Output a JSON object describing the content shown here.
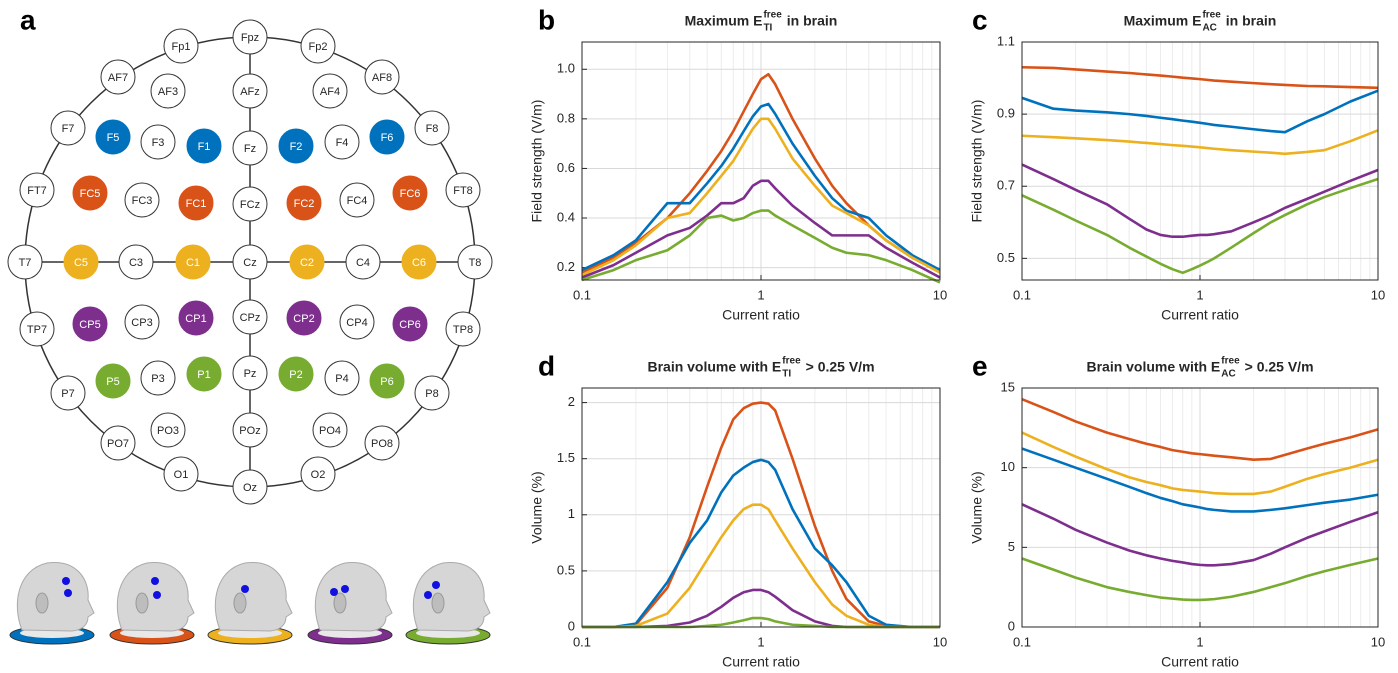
{
  "diagram": {
    "label": "a",
    "electrodes": [
      {
        "label": "Fp1",
        "color": "#ffffff"
      },
      {
        "label": "Fpz",
        "color": "#ffffff"
      },
      {
        "label": "Fp2",
        "color": "#ffffff"
      },
      {
        "label": "AF7",
        "color": "#ffffff"
      },
      {
        "label": "AF3",
        "color": "#ffffff"
      },
      {
        "label": "AFz",
        "color": "#ffffff"
      },
      {
        "label": "AF4",
        "color": "#ffffff"
      },
      {
        "label": "AF8",
        "color": "#ffffff"
      },
      {
        "label": "F7",
        "color": "#ffffff"
      },
      {
        "label": "F5",
        "color": "#0072bd"
      },
      {
        "label": "F3",
        "color": "#ffffff"
      },
      {
        "label": "F1",
        "color": "#0072bd"
      },
      {
        "label": "Fz",
        "color": "#ffffff"
      },
      {
        "label": "F2",
        "color": "#0072bd"
      },
      {
        "label": "F4",
        "color": "#ffffff"
      },
      {
        "label": "F6",
        "color": "#0072bd"
      },
      {
        "label": "F8",
        "color": "#ffffff"
      },
      {
        "label": "FT7",
        "color": "#ffffff"
      },
      {
        "label": "FC5",
        "color": "#d95319"
      },
      {
        "label": "FC3",
        "color": "#ffffff"
      },
      {
        "label": "FC1",
        "color": "#d95319"
      },
      {
        "label": "FCz",
        "color": "#ffffff"
      },
      {
        "label": "FC2",
        "color": "#d95319"
      },
      {
        "label": "FC4",
        "color": "#ffffff"
      },
      {
        "label": "FC6",
        "color": "#d95319"
      },
      {
        "label": "FT8",
        "color": "#ffffff"
      },
      {
        "label": "T7",
        "color": "#ffffff"
      },
      {
        "label": "C5",
        "color": "#edb120"
      },
      {
        "label": "C3",
        "color": "#ffffff"
      },
      {
        "label": "C1",
        "color": "#edb120"
      },
      {
        "label": "Cz",
        "color": "#ffffff"
      },
      {
        "label": "C2",
        "color": "#edb120"
      },
      {
        "label": "C4",
        "color": "#ffffff"
      },
      {
        "label": "C6",
        "color": "#edb120"
      },
      {
        "label": "T8",
        "color": "#ffffff"
      },
      {
        "label": "TP7",
        "color": "#ffffff"
      },
      {
        "label": "CP5",
        "color": "#7e2f8e"
      },
      {
        "label": "CP3",
        "color": "#ffffff"
      },
      {
        "label": "CP1",
        "color": "#7e2f8e"
      },
      {
        "label": "CPz",
        "color": "#ffffff"
      },
      {
        "label": "CP2",
        "color": "#7e2f8e"
      },
      {
        "label": "CP4",
        "color": "#ffffff"
      },
      {
        "label": "CP6",
        "color": "#7e2f8e"
      },
      {
        "label": "TP8",
        "color": "#ffffff"
      },
      {
        "label": "P7",
        "color": "#ffffff"
      },
      {
        "label": "P5",
        "color": "#77ac30"
      },
      {
        "label": "P3",
        "color": "#ffffff"
      },
      {
        "label": "P1",
        "color": "#77ac30"
      },
      {
        "label": "Pz",
        "color": "#ffffff"
      },
      {
        "label": "P2",
        "color": "#77ac30"
      },
      {
        "label": "P4",
        "color": "#ffffff"
      },
      {
        "label": "P6",
        "color": "#77ac30"
      },
      {
        "label": "P8",
        "color": "#ffffff"
      },
      {
        "label": "PO7",
        "color": "#ffffff"
      },
      {
        "label": "PO3",
        "color": "#ffffff"
      },
      {
        "label": "POz",
        "color": "#ffffff"
      },
      {
        "label": "PO4",
        "color": "#ffffff"
      },
      {
        "label": "PO8",
        "color": "#ffffff"
      },
      {
        "label": "O1",
        "color": "#ffffff"
      },
      {
        "label": "Oz",
        "color": "#ffffff"
      },
      {
        "label": "O2",
        "color": "#ffffff"
      }
    ]
  },
  "chart_data": [
    {
      "type": "line",
      "label": "b",
      "title": {
        "text": "Maximum E",
        "sup": "free",
        "sub": "TI",
        "rest": "in brain"
      },
      "x_label": "Current ratio",
      "y_label": "Field strength (V/m)",
      "xscale": "log",
      "grid": true,
      "xlim": [
        0.1,
        10
      ],
      "xticks": [
        0.1,
        1,
        10
      ],
      "xminor": [
        0.2,
        0.3,
        0.4,
        0.5,
        0.6,
        0.7,
        0.8,
        0.9,
        2,
        3,
        4,
        5,
        6,
        7,
        8,
        9
      ],
      "ylim": [
        0.15,
        1.11
      ],
      "yticks": [
        0.2,
        0.4,
        0.6,
        0.8,
        {
          "value": 1,
          "label": "1.0"
        }
      ],
      "x": [
        0.1,
        0.15,
        0.2,
        0.3,
        0.4,
        0.5,
        0.6,
        0.7,
        0.8,
        0.9,
        1,
        1.1,
        1.2,
        1.5,
        2,
        2.5,
        3,
        4,
        5,
        7,
        10
      ],
      "series": [
        {
          "color": "#d95319",
          "values": [
            0.18,
            0.24,
            0.3,
            0.4,
            0.5,
            0.59,
            0.67,
            0.75,
            0.83,
            0.9,
            0.96,
            0.98,
            0.94,
            0.8,
            0.64,
            0.53,
            0.46,
            0.37,
            0.31,
            0.24,
            0.19
          ]
        },
        {
          "color": "#0072bd",
          "values": [
            0.19,
            0.25,
            0.31,
            0.46,
            0.46,
            0.54,
            0.61,
            0.68,
            0.75,
            0.81,
            0.85,
            0.86,
            0.82,
            0.7,
            0.57,
            0.48,
            0.43,
            0.4,
            0.33,
            0.25,
            0.19
          ]
        },
        {
          "color": "#edb120",
          "values": [
            0.17,
            0.23,
            0.29,
            0.4,
            0.42,
            0.5,
            0.57,
            0.63,
            0.7,
            0.76,
            0.8,
            0.8,
            0.76,
            0.64,
            0.53,
            0.45,
            0.42,
            0.37,
            0.31,
            0.24,
            0.18
          ]
        },
        {
          "color": "#7e2f8e",
          "values": [
            0.16,
            0.21,
            0.26,
            0.33,
            0.36,
            0.41,
            0.46,
            0.46,
            0.48,
            0.53,
            0.55,
            0.55,
            0.52,
            0.45,
            0.38,
            0.33,
            0.33,
            0.33,
            0.28,
            0.22,
            0.16
          ]
        },
        {
          "color": "#77ac30",
          "values": [
            0.15,
            0.19,
            0.23,
            0.27,
            0.33,
            0.4,
            0.41,
            0.39,
            0.4,
            0.42,
            0.43,
            0.43,
            0.41,
            0.37,
            0.32,
            0.28,
            0.26,
            0.25,
            0.23,
            0.19,
            0.14
          ]
        }
      ]
    },
    {
      "type": "line",
      "label": "c",
      "title": {
        "text": "Maximum E",
        "sup": "free",
        "sub": "AC",
        "rest": "in brain"
      },
      "x_label": "Current ratio",
      "y_label": "Field strength (V/m)",
      "xscale": "log",
      "grid": true,
      "xlim": [
        0.1,
        10
      ],
      "xticks": [
        0.1,
        1,
        10
      ],
      "xminor": [
        0.2,
        0.3,
        0.4,
        0.5,
        0.6,
        0.7,
        0.8,
        0.9,
        2,
        3,
        4,
        5,
        6,
        7,
        8,
        9
      ],
      "ylim": [
        0.44,
        1.1
      ],
      "yticks": [
        0.5,
        0.7,
        0.9,
        1.1
      ],
      "x": [
        0.1,
        0.15,
        0.2,
        0.3,
        0.4,
        0.5,
        0.6,
        0.7,
        0.8,
        0.9,
        1,
        1.1,
        1.2,
        1.5,
        2,
        2.5,
        3,
        4,
        5,
        7,
        10
      ],
      "series": [
        {
          "color": "#d95319",
          "values": [
            1.03,
            1.028,
            1.024,
            1.018,
            1.014,
            1.01,
            1.007,
            1.004,
            1.001,
            0.999,
            0.997,
            0.995,
            0.993,
            0.99,
            0.986,
            0.983,
            0.981,
            0.978,
            0.977,
            0.975,
            0.973
          ]
        },
        {
          "color": "#0072bd",
          "values": [
            0.945,
            0.915,
            0.91,
            0.905,
            0.9,
            0.895,
            0.89,
            0.886,
            0.882,
            0.879,
            0.876,
            0.873,
            0.87,
            0.865,
            0.858,
            0.853,
            0.85,
            0.88,
            0.9,
            0.935,
            0.965
          ]
        },
        {
          "color": "#edb120",
          "values": [
            0.84,
            0.836,
            0.833,
            0.828,
            0.824,
            0.82,
            0.817,
            0.814,
            0.812,
            0.81,
            0.808,
            0.806,
            0.804,
            0.8,
            0.796,
            0.793,
            0.79,
            0.795,
            0.8,
            0.825,
            0.855
          ]
        },
        {
          "color": "#7e2f8e",
          "values": [
            0.76,
            0.72,
            0.69,
            0.65,
            0.61,
            0.58,
            0.565,
            0.56,
            0.56,
            0.563,
            0.565,
            0.565,
            0.567,
            0.575,
            0.6,
            0.62,
            0.64,
            0.665,
            0.685,
            0.715,
            0.745
          ]
        },
        {
          "color": "#77ac30",
          "values": [
            0.675,
            0.635,
            0.605,
            0.565,
            0.53,
            0.505,
            0.485,
            0.47,
            0.46,
            0.47,
            0.48,
            0.49,
            0.5,
            0.53,
            0.57,
            0.6,
            0.62,
            0.65,
            0.67,
            0.695,
            0.72
          ]
        }
      ]
    },
    {
      "type": "line",
      "label": "d",
      "title": {
        "text": "Brain volume with E",
        "sup": "free",
        "sub": "TI",
        "rest": "> 0.25 V/m"
      },
      "x_label": "Current ratio",
      "y_label": "Volume (%)",
      "xscale": "log",
      "grid": true,
      "xlim": [
        0.1,
        10
      ],
      "xticks": [
        0.1,
        1,
        10
      ],
      "xminor": [
        0.2,
        0.3,
        0.4,
        0.5,
        0.6,
        0.7,
        0.8,
        0.9,
        2,
        3,
        4,
        5,
        6,
        7,
        8,
        9
      ],
      "ylim": [
        0,
        2.13
      ],
      "yticks": [
        0,
        0.5,
        1,
        1.5,
        2
      ],
      "x": [
        0.1,
        0.15,
        0.2,
        0.3,
        0.4,
        0.5,
        0.6,
        0.7,
        0.8,
        0.9,
        1,
        1.1,
        1.2,
        1.5,
        2,
        2.5,
        3,
        4,
        5,
        7,
        10
      ],
      "series": [
        {
          "color": "#d95319",
          "values": [
            0,
            0,
            0.02,
            0.35,
            0.8,
            1.25,
            1.6,
            1.85,
            1.95,
            1.99,
            2.0,
            1.99,
            1.93,
            1.5,
            0.9,
            0.5,
            0.25,
            0.05,
            0.01,
            0,
            0
          ]
        },
        {
          "color": "#0072bd",
          "values": [
            0,
            0,
            0.03,
            0.4,
            0.75,
            0.95,
            1.2,
            1.35,
            1.42,
            1.47,
            1.49,
            1.47,
            1.4,
            1.05,
            0.7,
            0.55,
            0.4,
            0.1,
            0.02,
            0,
            0
          ]
        },
        {
          "color": "#edb120",
          "values": [
            0,
            0,
            0.01,
            0.12,
            0.35,
            0.6,
            0.8,
            0.95,
            1.05,
            1.09,
            1.09,
            1.05,
            0.95,
            0.7,
            0.4,
            0.2,
            0.1,
            0.02,
            0,
            0,
            0
          ]
        },
        {
          "color": "#7e2f8e",
          "values": [
            0,
            0,
            0,
            0.01,
            0.04,
            0.1,
            0.18,
            0.26,
            0.31,
            0.33,
            0.33,
            0.31,
            0.27,
            0.15,
            0.05,
            0.01,
            0,
            0,
            0,
            0,
            0
          ]
        },
        {
          "color": "#77ac30",
          "values": [
            0,
            0,
            0,
            0,
            0,
            0.01,
            0.02,
            0.04,
            0.06,
            0.08,
            0.08,
            0.07,
            0.05,
            0.02,
            0.01,
            0,
            0,
            0,
            0,
            0,
            0
          ]
        }
      ]
    },
    {
      "type": "line",
      "label": "e",
      "title": {
        "text": "Brain volume with E",
        "sup": "free",
        "sub": "AC",
        "rest": "> 0.25 V/m"
      },
      "x_label": "Current ratio",
      "y_label": "Volume (%)",
      "xscale": "log",
      "grid": true,
      "xlim": [
        0.1,
        10
      ],
      "xticks": [
        0.1,
        1,
        10
      ],
      "xminor": [
        0.2,
        0.3,
        0.4,
        0.5,
        0.6,
        0.7,
        0.8,
        0.9,
        2,
        3,
        4,
        5,
        6,
        7,
        8,
        9
      ],
      "ylim": [
        0,
        15
      ],
      "yticks": [
        0,
        5,
        10,
        15
      ],
      "x": [
        0.1,
        0.15,
        0.2,
        0.3,
        0.4,
        0.5,
        0.6,
        0.7,
        0.8,
        0.9,
        1,
        1.1,
        1.2,
        1.5,
        2,
        2.5,
        3,
        4,
        5,
        7,
        10
      ],
      "series": [
        {
          "color": "#d95319",
          "values": [
            14.3,
            13.5,
            12.9,
            12.2,
            11.8,
            11.5,
            11.3,
            11.1,
            11.0,
            10.9,
            10.85,
            10.8,
            10.75,
            10.65,
            10.5,
            10.55,
            10.8,
            11.2,
            11.5,
            11.9,
            12.4
          ]
        },
        {
          "color": "#edb120",
          "values": [
            12.2,
            11.3,
            10.7,
            9.9,
            9.4,
            9.1,
            8.9,
            8.7,
            8.6,
            8.55,
            8.5,
            8.45,
            8.4,
            8.35,
            8.35,
            8.5,
            8.8,
            9.3,
            9.6,
            10.0,
            10.5
          ]
        },
        {
          "color": "#0072bd",
          "values": [
            11.2,
            10.5,
            10.0,
            9.3,
            8.8,
            8.4,
            8.1,
            7.9,
            7.7,
            7.6,
            7.5,
            7.4,
            7.35,
            7.25,
            7.25,
            7.35,
            7.45,
            7.65,
            7.8,
            8.0,
            8.3
          ]
        },
        {
          "color": "#7e2f8e",
          "values": [
            7.7,
            6.8,
            6.1,
            5.3,
            4.8,
            4.5,
            4.3,
            4.15,
            4.05,
            3.95,
            3.9,
            3.87,
            3.87,
            3.95,
            4.2,
            4.6,
            5.0,
            5.6,
            6.0,
            6.6,
            7.2
          ]
        },
        {
          "color": "#77ac30",
          "values": [
            4.3,
            3.6,
            3.1,
            2.5,
            2.2,
            2.0,
            1.85,
            1.78,
            1.72,
            1.7,
            1.7,
            1.72,
            1.75,
            1.9,
            2.2,
            2.5,
            2.75,
            3.2,
            3.5,
            3.9,
            4.3
          ]
        }
      ]
    }
  ]
}
